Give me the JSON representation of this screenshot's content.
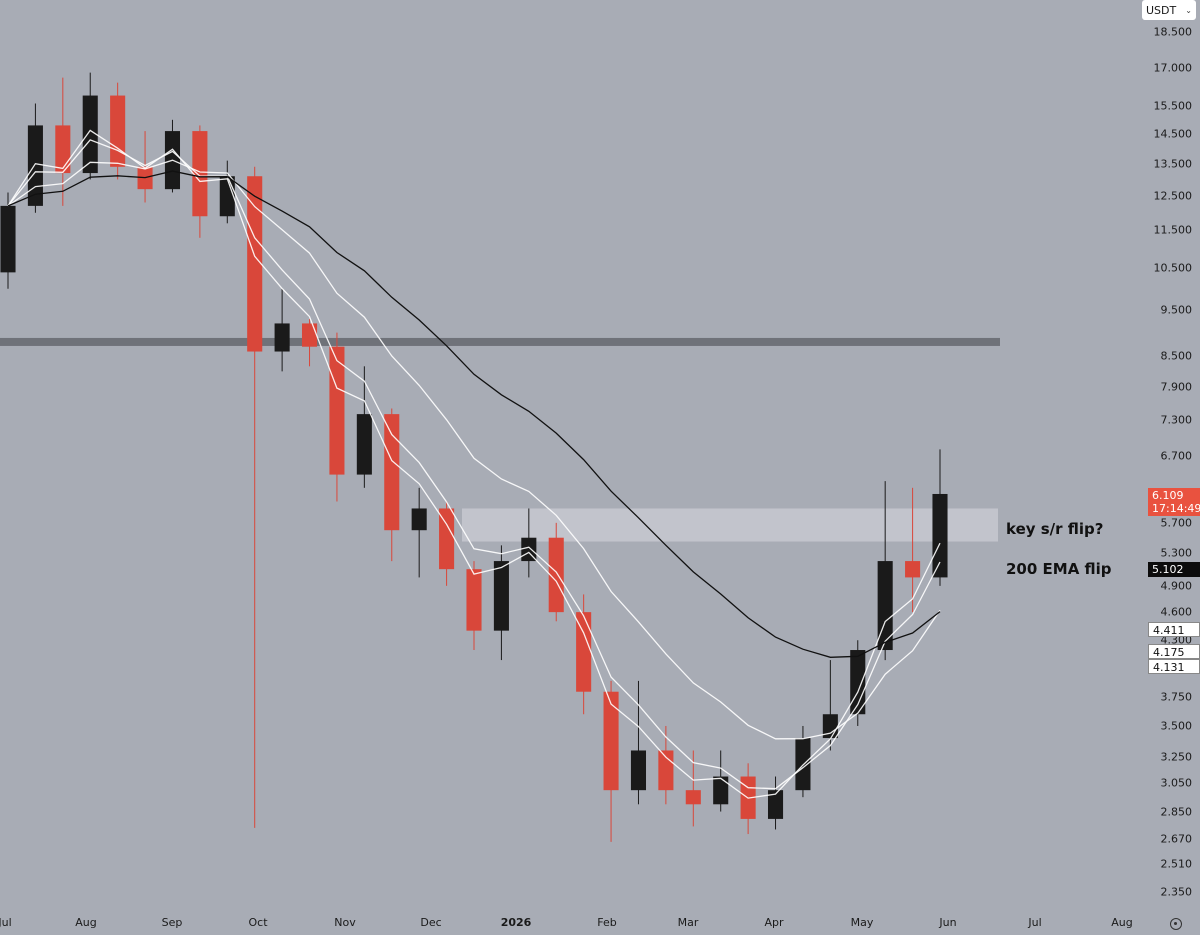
{
  "header": {
    "currency": "USDT"
  },
  "badges": {
    "current_price": "6.109",
    "countdown": "17:14:49",
    "ema200": "5.102",
    "ema_a": "4.411",
    "ema_b": "4.175",
    "ema_c": "4.131"
  },
  "annotations": {
    "sr_flip": "key s/r flip?",
    "ema_flip": "200 EMA flip"
  },
  "colors": {
    "background": "#a8acb5",
    "candle_up": "#1a1a1a",
    "candle_down": "#d9473a",
    "ema200": "#111111",
    "ema_ribbon": "#ffffff",
    "resistance_band": "#6f7279",
    "sr_zone": "#d7d9de"
  },
  "chart_data": {
    "type": "candlestick",
    "pair_quote": "USDT",
    "scale": "log",
    "ylim": [
      2.25,
      20.0
    ],
    "price_ticks": [
      "18.500",
      "17.000",
      "15.500",
      "14.500",
      "13.500",
      "12.500",
      "11.500",
      "10.500",
      "9.500",
      "8.500",
      "7.900",
      "7.300",
      "6.700",
      "5.700",
      "5.300",
      "4.900",
      "4.600",
      "4.300",
      "3.750",
      "3.500",
      "3.250",
      "3.050",
      "2.850",
      "2.670",
      "2.510",
      "2.350"
    ],
    "months": [
      "Jul",
      "Aug",
      "Sep",
      "Oct",
      "Nov",
      "Dec",
      "2026",
      "Feb",
      "Mar",
      "Apr",
      "May",
      "Jun",
      "Jul",
      "Aug"
    ],
    "current_price": 6.109,
    "levels": {
      "resistance_band": 8.8,
      "sr_zone": [
        5.45,
        5.9
      ]
    },
    "ema200_last": 5.102,
    "ema_ribbon_last": [
      4.411,
      4.175,
      4.131
    ],
    "candles_weekly_approx": [
      {
        "x": "Jul",
        "o": 10.4,
        "h": 12.6,
        "l": 10.0,
        "c": 12.2
      },
      {
        "x": "Jul-2",
        "o": 12.2,
        "h": 15.6,
        "l": 12.0,
        "c": 14.8
      },
      {
        "x": "Aug",
        "o": 14.8,
        "h": 16.6,
        "l": 12.2,
        "c": 13.2
      },
      {
        "x": "Aug-2",
        "o": 13.2,
        "h": 16.8,
        "l": 13.0,
        "c": 15.9
      },
      {
        "x": "Aug-3",
        "o": 15.9,
        "h": 16.4,
        "l": 13.0,
        "c": 13.4
      },
      {
        "x": "Sep",
        "o": 13.4,
        "h": 14.6,
        "l": 12.3,
        "c": 12.7
      },
      {
        "x": "Sep-2",
        "o": 12.7,
        "h": 15.0,
        "l": 12.6,
        "c": 14.6
      },
      {
        "x": "Sep-3",
        "o": 14.6,
        "h": 14.8,
        "l": 11.3,
        "c": 11.9
      },
      {
        "x": "Oct",
        "o": 11.9,
        "h": 13.6,
        "l": 11.7,
        "c": 13.1
      },
      {
        "x": "Oct-2",
        "o": 13.1,
        "h": 13.4,
        "l": 2.74,
        "c": 8.6
      },
      {
        "x": "Oct-3",
        "o": 8.6,
        "h": 10.0,
        "l": 8.2,
        "c": 9.2
      },
      {
        "x": "Oct-4",
        "o": 9.2,
        "h": 9.3,
        "l": 8.3,
        "c": 8.7
      },
      {
        "x": "Nov",
        "o": 8.7,
        "h": 9.0,
        "l": 6.0,
        "c": 6.4
      },
      {
        "x": "Nov-2",
        "o": 6.4,
        "h": 8.3,
        "l": 6.2,
        "c": 7.4
      },
      {
        "x": "Nov-3",
        "o": 7.4,
        "h": 7.5,
        "l": 5.2,
        "c": 5.6
      },
      {
        "x": "Dec",
        "o": 5.6,
        "h": 6.2,
        "l": 5.0,
        "c": 5.9
      },
      {
        "x": "Dec-2",
        "o": 5.9,
        "h": 6.0,
        "l": 4.9,
        "c": 5.1
      },
      {
        "x": "Dec-3",
        "o": 5.1,
        "h": 5.2,
        "l": 4.2,
        "c": 4.4
      },
      {
        "x": "Dec-4",
        "o": 4.4,
        "h": 5.4,
        "l": 4.1,
        "c": 5.2
      },
      {
        "x": "2026",
        "o": 5.2,
        "h": 5.9,
        "l": 5.0,
        "c": 5.5
      },
      {
        "x": "Jan-2",
        "o": 5.5,
        "h": 5.7,
        "l": 4.5,
        "c": 4.6
      },
      {
        "x": "Jan-3",
        "o": 4.6,
        "h": 4.8,
        "l": 3.6,
        "c": 3.8
      },
      {
        "x": "Feb",
        "o": 3.8,
        "h": 3.9,
        "l": 2.65,
        "c": 3.0
      },
      {
        "x": "Feb-2",
        "o": 3.0,
        "h": 3.9,
        "l": 2.9,
        "c": 3.3
      },
      {
        "x": "Feb-3",
        "o": 3.3,
        "h": 3.5,
        "l": 2.9,
        "c": 3.0
      },
      {
        "x": "Mar",
        "o": 3.0,
        "h": 3.3,
        "l": 2.75,
        "c": 2.9
      },
      {
        "x": "Mar-2",
        "o": 2.9,
        "h": 3.3,
        "l": 2.85,
        "c": 3.1
      },
      {
        "x": "Mar-3",
        "o": 3.1,
        "h": 3.2,
        "l": 2.7,
        "c": 2.8
      },
      {
        "x": "Apr",
        "o": 2.8,
        "h": 3.1,
        "l": 2.73,
        "c": 3.0
      },
      {
        "x": "Apr-2",
        "o": 3.0,
        "h": 3.5,
        "l": 2.95,
        "c": 3.4
      },
      {
        "x": "Apr-3",
        "o": 3.4,
        "h": 4.1,
        "l": 3.3,
        "c": 3.6
      },
      {
        "x": "May",
        "o": 3.6,
        "h": 4.3,
        "l": 3.5,
        "c": 4.2
      },
      {
        "x": "May-2",
        "o": 4.2,
        "h": 6.3,
        "l": 4.1,
        "c": 5.2
      },
      {
        "x": "May-3",
        "o": 5.2,
        "h": 6.2,
        "l": 4.6,
        "c": 5.0
      },
      {
        "x": "May-4",
        "o": 5.0,
        "h": 6.8,
        "l": 4.9,
        "c": 6.109
      }
    ]
  }
}
